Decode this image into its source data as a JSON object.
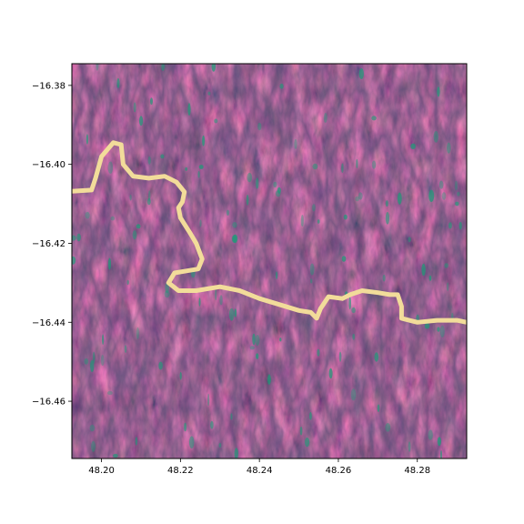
{
  "map": {
    "x_ticks": [
      {
        "value": 48.2,
        "label": "48.20"
      },
      {
        "value": 48.22,
        "label": "48.22"
      },
      {
        "value": 48.24,
        "label": "48.24"
      },
      {
        "value": 48.26,
        "label": "48.26"
      },
      {
        "value": 48.28,
        "label": "48.28"
      }
    ],
    "y_ticks": [
      {
        "value": -16.38,
        "label": "−16.38"
      },
      {
        "value": -16.4,
        "label": "−16.40"
      },
      {
        "value": -16.42,
        "label": "−16.42"
      },
      {
        "value": -16.44,
        "label": "−16.44"
      },
      {
        "value": -16.46,
        "label": "−16.46"
      }
    ],
    "xlim": [
      48.1925,
      48.2925
    ],
    "ylim": [
      -16.4745,
      -16.3745
    ],
    "river_path": [
      [
        48.1925,
        -16.4068
      ],
      [
        48.1975,
        -16.4065
      ],
      [
        48.1985,
        -16.4035
      ],
      [
        48.2,
        -16.398
      ],
      [
        48.203,
        -16.3945
      ],
      [
        48.205,
        -16.395
      ],
      [
        48.2055,
        -16.4
      ],
      [
        48.208,
        -16.403
      ],
      [
        48.212,
        -16.4035
      ],
      [
        48.216,
        -16.403
      ],
      [
        48.219,
        -16.4045
      ],
      [
        48.221,
        -16.407
      ],
      [
        48.2205,
        -16.4095
      ],
      [
        48.2195,
        -16.411
      ],
      [
        48.22,
        -16.4135
      ],
      [
        48.2225,
        -16.4175
      ],
      [
        48.224,
        -16.42
      ],
      [
        48.2255,
        -16.424
      ],
      [
        48.2245,
        -16.4265
      ],
      [
        48.2215,
        -16.427
      ],
      [
        48.2185,
        -16.4275
      ],
      [
        48.217,
        -16.43
      ],
      [
        48.2195,
        -16.432
      ],
      [
        48.224,
        -16.432
      ],
      [
        48.23,
        -16.431
      ],
      [
        48.235,
        -16.432
      ],
      [
        48.24,
        -16.434
      ],
      [
        48.245,
        -16.4355
      ],
      [
        48.25,
        -16.437
      ],
      [
        48.253,
        -16.4375
      ],
      [
        48.2545,
        -16.439
      ],
      [
        48.2555,
        -16.4365
      ],
      [
        48.2575,
        -16.4335
      ],
      [
        48.261,
        -16.434
      ],
      [
        48.263,
        -16.433
      ],
      [
        48.266,
        -16.432
      ],
      [
        48.27,
        -16.4325
      ],
      [
        48.273,
        -16.433
      ],
      [
        48.275,
        -16.433
      ],
      [
        48.276,
        -16.436
      ],
      [
        48.276,
        -16.439
      ],
      [
        48.28,
        -16.44
      ],
      [
        48.285,
        -16.4395
      ],
      [
        48.29,
        -16.4395
      ],
      [
        48.2925,
        -16.44
      ]
    ],
    "colors": {
      "terrain_base": "#7a3358",
      "ridge": "#d9577a",
      "valley": "#2a1a3a",
      "vegetation": "#1f9a78",
      "river": "#f2dc9a",
      "frame": "#000000"
    }
  }
}
